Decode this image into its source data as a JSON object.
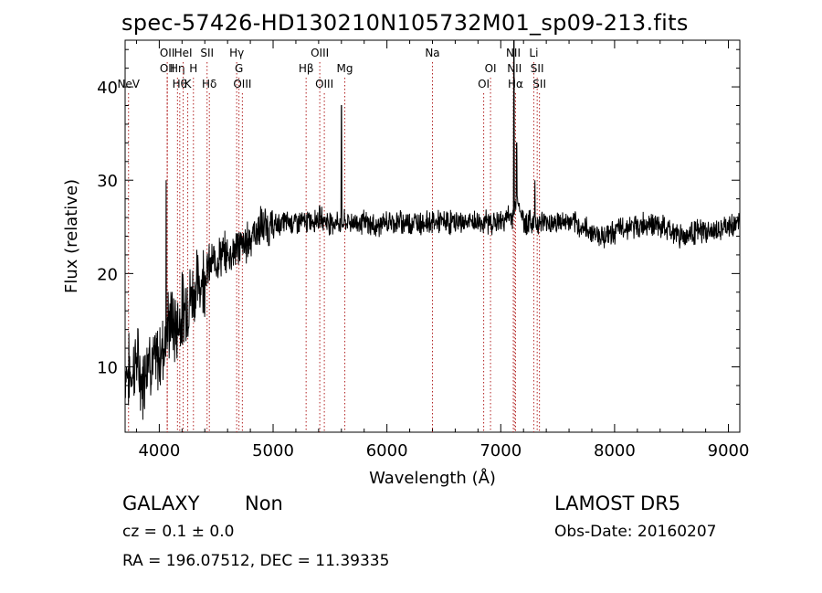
{
  "chart_data": {
    "type": "line",
    "title": "spec-57426-HD130210N105732M01_sp09-213.fits",
    "xlabel": "Wavelength (Å)",
    "ylabel": "Flux (relative)",
    "xlim": [
      3700,
      9100
    ],
    "ylim": [
      3,
      45
    ],
    "xticks": [
      4000,
      5000,
      6000,
      7000,
      8000,
      9000
    ],
    "yticks": [
      10,
      20,
      30,
      40
    ],
    "grid": false,
    "line_color": "#000000",
    "marker_color": "#b22222",
    "series": [
      {
        "x": [
          3700,
          3750,
          3800,
          3850,
          3900,
          3950,
          4000,
          4050,
          4100,
          4150,
          4200,
          4250,
          4300,
          4350,
          4400,
          4450,
          4500,
          4550,
          4600,
          4650,
          4700,
          4750,
          4800,
          4850,
          4900,
          4950,
          5000,
          5100,
          5200,
          5300,
          5400,
          5500,
          5600,
          5700,
          5800,
          5900,
          6000,
          6100,
          6200,
          6300,
          6400,
          6500,
          6600,
          6700,
          6800,
          6900,
          7000,
          7050,
          7100,
          7150,
          7200,
          7300,
          7400,
          7500,
          7600,
          7700,
          7800,
          7900,
          8000,
          8100,
          8200,
          8300,
          8400,
          8500,
          8600,
          8700,
          8800,
          8900,
          9000,
          9100
        ],
        "y": [
          10,
          9,
          11,
          8,
          12,
          10,
          11,
          13,
          15,
          14,
          16,
          17,
          18,
          19,
          20,
          21,
          21.5,
          22,
          22,
          22.5,
          23,
          23,
          24,
          24.5,
          25,
          25,
          25,
          25.5,
          25.5,
          25.5,
          26,
          25.5,
          25.5,
          25.5,
          25.5,
          25,
          25.5,
          25.5,
          25.5,
          25.5,
          25.5,
          25.5,
          25.5,
          25.5,
          25.5,
          25.5,
          25.5,
          26,
          26,
          28,
          25.5,
          25.5,
          25.5,
          25.5,
          25.5,
          25,
          24.5,
          24,
          24.5,
          25,
          25,
          25.5,
          25,
          24.5,
          24,
          24.5,
          24.5,
          24.5,
          25,
          25.5
        ]
      }
    ],
    "spike_features": [
      {
        "x": 4060,
        "y": 30
      },
      {
        "x": 5600,
        "y": 38
      },
      {
        "x": 7115,
        "y": 45
      },
      {
        "x": 7140,
        "y": 34
      },
      {
        "x": 7300,
        "y": 30
      }
    ],
    "line_markers": [
      {
        "x": 3730,
        "label": "NeV",
        "row": 4
      },
      {
        "x": 4070,
        "label": "OII",
        "row": 1
      },
      {
        "x": 4070,
        "label": "OII",
        "row": 2
      },
      {
        "x": 4160,
        "label": "Hη",
        "row": 2
      },
      {
        "x": 4180,
        "label": "Hθ",
        "row": 3
      },
      {
        "x": 4210,
        "label": "HeI",
        "row": 1
      },
      {
        "x": 4250,
        "label": "K",
        "row": 3
      },
      {
        "x": 4300,
        "label": "H",
        "row": 2
      },
      {
        "x": 4420,
        "label": "SII",
        "row": 1
      },
      {
        "x": 4440,
        "label": "Hδ",
        "row": 3
      },
      {
        "x": 4680,
        "label": "Hγ",
        "row": 1
      },
      {
        "x": 4700,
        "label": "G",
        "row": 2
      },
      {
        "x": 4730,
        "label": "OIII",
        "row": 3
      },
      {
        "x": 5290,
        "label": "Hβ",
        "row": 2
      },
      {
        "x": 5410,
        "label": "OIII",
        "row": 1
      },
      {
        "x": 5450,
        "label": "OIII",
        "row": 3
      },
      {
        "x": 5630,
        "label": "Mg",
        "row": 2
      },
      {
        "x": 6400,
        "label": "Na",
        "row": 1
      },
      {
        "x": 6850,
        "label": "OI",
        "row": 3
      },
      {
        "x": 6910,
        "label": "OI",
        "row": 2
      },
      {
        "x": 7110,
        "label": "NII",
        "row": 1
      },
      {
        "x": 7120,
        "label": "NII",
        "row": 2
      },
      {
        "x": 7130,
        "label": "Hα",
        "row": 3
      },
      {
        "x": 7290,
        "label": "Li",
        "row": 1
      },
      {
        "x": 7320,
        "label": "SII",
        "row": 2
      },
      {
        "x": 7340,
        "label": "SII",
        "row": 3
      }
    ]
  },
  "footer": {
    "class_label": "GALAXY",
    "subclass_label": "Non",
    "cz": "cz = 0.1 ± 0.0",
    "coords": "RA = 196.07512, DEC =  11.39335",
    "survey": "LAMOST DR5",
    "obs_date": "Obs-Date: 20160207"
  }
}
